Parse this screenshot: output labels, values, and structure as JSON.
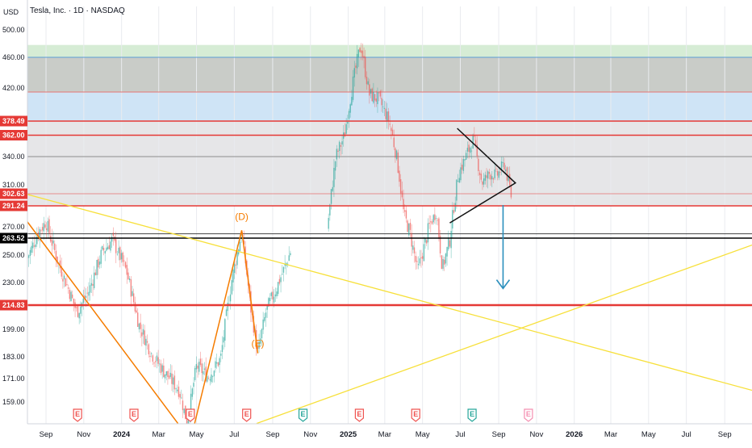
{
  "header": {
    "unit_label": "USD",
    "title": "Tesla, Inc. · 1D · NASDAQ"
  },
  "chart_data": {
    "type": "candlestick",
    "title": "Tesla, Inc. · 1D · NASDAQ",
    "ylabel": "USD",
    "ylim": [
      145,
      522
    ],
    "y_ticks": [
      {
        "label": "500.00",
        "v": 500
      },
      {
        "label": "460.00",
        "v": 460
      },
      {
        "label": "420.00",
        "v": 420
      },
      {
        "label": "340.00",
        "v": 340
      },
      {
        "label": "310.00",
        "v": 310
      },
      {
        "label": "270.00",
        "v": 270
      },
      {
        "label": "250.00",
        "v": 250
      },
      {
        "label": "230.00",
        "v": 230
      },
      {
        "label": "199.00",
        "v": 199
      },
      {
        "label": "183.00",
        "v": 183
      },
      {
        "label": "171.00",
        "v": 171
      },
      {
        "label": "159.00",
        "v": 159
      }
    ],
    "x_ticks": [
      {
        "label": "Sep",
        "d": 0
      },
      {
        "label": "Nov",
        "d": 61
      },
      {
        "label": "2024",
        "d": 122,
        "bold": true
      },
      {
        "label": "Mar",
        "d": 182
      },
      {
        "label": "May",
        "d": 243
      },
      {
        "label": "Jul",
        "d": 304
      },
      {
        "label": "Sep",
        "d": 366
      },
      {
        "label": "Nov",
        "d": 427
      },
      {
        "label": "2025",
        "d": 488,
        "bold": true
      },
      {
        "label": "Mar",
        "d": 547
      },
      {
        "label": "May",
        "d": 608
      },
      {
        "label": "Jul",
        "d": 669
      },
      {
        "label": "Sep",
        "d": 731
      },
      {
        "label": "Nov",
        "d": 792
      },
      {
        "label": "2026",
        "d": 853,
        "bold": true
      },
      {
        "label": "Mar",
        "d": 912
      },
      {
        "label": "May",
        "d": 973
      },
      {
        "label": "Jul",
        "d": 1034
      },
      {
        "label": "Sep",
        "d": 1096
      }
    ],
    "x_range_days": [
      -30,
      1140
    ],
    "zones": [
      {
        "from": 460,
        "to": 522,
        "color": "#d6ecd5"
      },
      {
        "from": 415,
        "to": 460,
        "color": "#c9ccc8"
      },
      {
        "from": 378.49,
        "to": 415,
        "color": "#cfe4f6"
      },
      {
        "from": 291.24,
        "to": 378.49,
        "color": "#e6e6e8"
      }
    ],
    "price_lines": [
      {
        "value": 378.49,
        "label": "378.49",
        "color": "#e53935",
        "width": 1.6
      },
      {
        "value": 362,
        "label": "362.00",
        "color": "#e53935",
        "width": 1.6
      },
      {
        "value": 302.63,
        "label": "302.63",
        "color": "#e53935",
        "width": 0.6
      },
      {
        "value": 291.24,
        "label": "291.24",
        "color": "#e53935",
        "width": 1.6
      },
      {
        "value": 263.52,
        "label": "263.52",
        "color": "#000000",
        "width": 1.4
      },
      {
        "value": 214.83,
        "label": "214.83",
        "color": "#e53935",
        "width": 2.4
      }
    ],
    "thin_lines": [
      {
        "value": 460,
        "color": "#5b9bd5"
      },
      {
        "value": 415,
        "color": "#e57373"
      },
      {
        "value": 340,
        "color": "#8c8c8c"
      },
      {
        "value": 266,
        "color": "#444444"
      }
    ],
    "ohlc_anchors": [
      {
        "d": -30,
        "p": 248
      },
      {
        "d": -15,
        "p": 265
      },
      {
        "d": 0,
        "p": 275
      },
      {
        "d": 20,
        "p": 244
      },
      {
        "d": 50,
        "p": 210
      },
      {
        "d": 70,
        "p": 225
      },
      {
        "d": 90,
        "p": 252
      },
      {
        "d": 107,
        "p": 262
      },
      {
        "d": 130,
        "p": 238
      },
      {
        "d": 150,
        "p": 202
      },
      {
        "d": 170,
        "p": 185
      },
      {
        "d": 190,
        "p": 175
      },
      {
        "d": 215,
        "p": 165
      },
      {
        "d": 228,
        "p": 148
      },
      {
        "d": 243,
        "p": 178
      },
      {
        "d": 262,
        "p": 172
      },
      {
        "d": 282,
        "p": 182
      },
      {
        "d": 300,
        "p": 232
      },
      {
        "d": 316,
        "p": 268
      },
      {
        "d": 330,
        "p": 214
      },
      {
        "d": 342,
        "p": 185
      },
      {
        "d": 356,
        "p": 212
      },
      {
        "d": 372,
        "p": 226
      },
      {
        "d": 388,
        "p": 244
      },
      {
        "d": 402,
        "p": 262
      },
      {
        "d": 425,
        "p": 252
      },
      {
        "d": 442,
        "p": 242
      },
      {
        "d": 454,
        "p": 268
      },
      {
        "d": 468,
        "p": 340
      },
      {
        "d": 482,
        "p": 362
      },
      {
        "d": 494,
        "p": 420
      },
      {
        "d": 508,
        "p": 478
      },
      {
        "d": 522,
        "p": 412
      },
      {
        "d": 538,
        "p": 405
      },
      {
        "d": 554,
        "p": 378
      },
      {
        "d": 566,
        "p": 340
      },
      {
        "d": 578,
        "p": 282
      },
      {
        "d": 590,
        "p": 262
      },
      {
        "d": 600,
        "p": 238
      },
      {
        "d": 608,
        "p": 252
      },
      {
        "d": 618,
        "p": 270
      },
      {
        "d": 630,
        "p": 285
      },
      {
        "d": 640,
        "p": 240
      },
      {
        "d": 652,
        "p": 262
      },
      {
        "d": 666,
        "p": 322
      },
      {
        "d": 678,
        "p": 340
      },
      {
        "d": 690,
        "p": 358
      },
      {
        "d": 704,
        "p": 312
      },
      {
        "d": 716,
        "p": 322
      },
      {
        "d": 728,
        "p": 320
      },
      {
        "d": 740,
        "p": 332
      },
      {
        "d": 752,
        "p": 298
      }
    ],
    "pattern_labels": [
      {
        "text": "(D)",
        "d": 316,
        "p": 277,
        "color": "#f57c00"
      },
      {
        "text": "(E)",
        "d": 342,
        "p": 189,
        "color": "#f57c00"
      }
    ],
    "earnings_markers": [
      {
        "d": 51,
        "label": "E",
        "color": "#ef5350"
      },
      {
        "d": 142,
        "label": "E",
        "color": "#ef5350"
      },
      {
        "d": 233,
        "label": "E",
        "color": "#ef5350"
      },
      {
        "d": 324,
        "label": "E",
        "color": "#ef5350"
      },
      {
        "d": 415,
        "label": "E",
        "color": "#26a69a"
      },
      {
        "d": 506,
        "label": "E",
        "color": "#ef5350"
      },
      {
        "d": 597,
        "label": "E",
        "color": "#ef5350"
      },
      {
        "d": 688,
        "label": "E",
        "color": "#26a69a"
      },
      {
        "d": 779,
        "label": "E",
        "color": "#f48fb1"
      }
    ],
    "colors": {
      "up": "#26a69a",
      "down": "#ef5350",
      "trend_yellow": "#f7e03a",
      "trend_orange": "#f57c00",
      "arrow": "#2a8fbd"
    },
    "grid": true
  }
}
